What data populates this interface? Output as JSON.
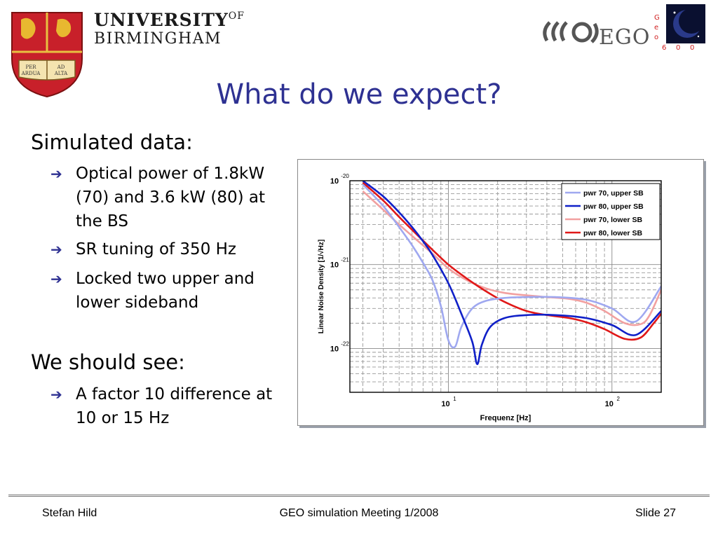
{
  "header": {
    "university_line1": "UNIVERSITY",
    "university_of": "OF",
    "university_line2": "BIRMINGHAM",
    "crest_motto": [
      "PER",
      "AD",
      "ARDUA",
      "ALTA"
    ],
    "ego_text": "EGO",
    "geo_letters": [
      "G",
      "e",
      "o",
      "6",
      "0",
      "0"
    ]
  },
  "slide": {
    "title": "What do we expect?",
    "section1": "Simulated data:",
    "bullets1": [
      "Optical power of 1.8kW (70) and 3.6 kW (80) at the BS",
      "SR tuning of 350 Hz",
      "Locked two upper and lower sideband"
    ],
    "section2": "We should see:",
    "bullets2": [
      "A factor 10 difference at 10 or 15 Hz"
    ],
    "bullet_symbol": "➔"
  },
  "chart_data": {
    "type": "line",
    "xlabel": "Frequenz [Hz]",
    "ylabel": "Linear Noise Density [1/√Hz]",
    "x_scale": "log",
    "y_scale": "log",
    "xlim": [
      2.5,
      200
    ],
    "ylim": [
      3e-23,
      1e-20
    ],
    "x_ticks": [
      {
        "base": "10",
        "exp": "1",
        "value": 10
      },
      {
        "base": "10",
        "exp": "2",
        "value": 100
      }
    ],
    "y_ticks": [
      {
        "base": "10",
        "exp": "-20",
        "value": 1e-20
      },
      {
        "base": "10",
        "exp": "-21",
        "value": 1e-21
      },
      {
        "base": "10",
        "exp": "-22",
        "value": 1e-22
      }
    ],
    "grid": true,
    "legend_position": "top-right",
    "series": [
      {
        "name": "pwr 70, upper SB",
        "color": "#9fa8f0",
        "x": [
          3.0,
          4.0,
          5.0,
          6.0,
          7.0,
          8.0,
          9.0,
          10.0,
          11.0,
          12.0,
          14.0,
          17.0,
          22.0,
          30.0,
          45.0,
          70.0,
          100.0,
          140.0,
          200.0
        ],
        "y": [
          9e-21,
          5e-21,
          2.8e-21,
          1.7e-21,
          1.05e-21,
          6.5e-22,
          3.2e-22,
          1.25e-22,
          1.05e-22,
          1.8e-22,
          3e-22,
          3.7e-22,
          4e-22,
          4.1e-22,
          4.1e-22,
          3.8e-22,
          3e-22,
          2.1e-22,
          5.5e-22
        ]
      },
      {
        "name": "pwr 80, upper SB",
        "color": "#1020c8",
        "x": [
          3.0,
          4.0,
          5.0,
          6.0,
          7.0,
          8.0,
          10.0,
          12.0,
          14.0,
          15.0,
          16.0,
          18.0,
          22.0,
          30.0,
          45.0,
          70.0,
          100.0,
          140.0,
          200.0
        ],
        "y": [
          1e-20,
          6.5e-21,
          4.2e-21,
          2.8e-21,
          1.9e-21,
          1.3e-21,
          6e-22,
          2.6e-22,
          1.2e-22,
          6.5e-23,
          1.1e-22,
          1.8e-22,
          2.3e-22,
          2.5e-22,
          2.5e-22,
          2.3e-22,
          1.9e-22,
          1.45e-22,
          2.8e-22
        ]
      },
      {
        "name": "pwr 70, lower SB",
        "color": "#f2a0a0",
        "x": [
          3.0,
          4.0,
          5.0,
          6.0,
          8.0,
          10.0,
          13.0,
          17.0,
          22.0,
          30.0,
          40.0,
          55.0,
          70.0,
          90.0,
          120.0,
          150.0,
          170.0,
          200.0
        ],
        "y": [
          7.5e-21,
          4.5e-21,
          3e-21,
          2.2e-21,
          1.35e-21,
          9e-22,
          6.5e-22,
          5.2e-22,
          4.6e-22,
          4.3e-22,
          4.1e-22,
          3.9e-22,
          3.5e-22,
          2.8e-22,
          2e-22,
          1.95e-22,
          2.5e-22,
          5e-22
        ]
      },
      {
        "name": "pwr 80, lower SB",
        "color": "#e01818",
        "x": [
          3.0,
          4.0,
          5.0,
          6.0,
          8.0,
          10.0,
          13.0,
          17.0,
          22.0,
          30.0,
          40.0,
          55.0,
          70.0,
          90.0,
          120.0,
          150.0,
          180.0,
          200.0
        ],
        "y": [
          9.5e-21,
          5.8e-21,
          3.7e-21,
          2.6e-21,
          1.5e-21,
          1e-21,
          6.8e-22,
          4.8e-22,
          3.6e-22,
          2.8e-22,
          2.5e-22,
          2.3e-22,
          2.05e-22,
          1.7e-22,
          1.3e-22,
          1.35e-22,
          2e-22,
          2.6e-22
        ]
      }
    ]
  },
  "footer": {
    "author": "Stefan Hild",
    "meeting": "GEO simulation Meeting 1/2008",
    "slide_number": "Slide 27"
  }
}
